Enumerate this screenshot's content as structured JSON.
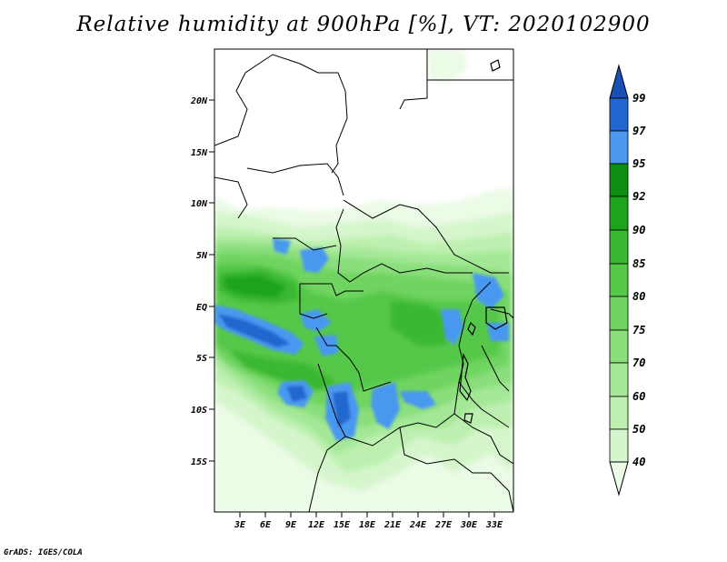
{
  "title": "Relative humidity at 900hPa [%], VT: 2020102900",
  "credit": "GrADS: IGES/COLA",
  "map": {
    "lat_labels": [
      "20N",
      "15N",
      "10N",
      "5N",
      "EQ",
      "5S",
      "10S",
      "15S"
    ],
    "lon_labels": [
      "3E",
      "6E",
      "9E",
      "12E",
      "15E",
      "18E",
      "21E",
      "24E",
      "27E",
      "30E",
      "33E"
    ]
  },
  "colorbar": {
    "levels": [
      "40",
      "50",
      "60",
      "70",
      "75",
      "80",
      "85",
      "90",
      "92",
      "95",
      "97",
      "99"
    ],
    "colors": {
      "c40": "#ebfbe6",
      "c50": "#d5f6cc",
      "c60": "#bdf0b0",
      "c70": "#a4e897",
      "c75": "#8ade7c",
      "c80": "#6fd461",
      "c85": "#55c849",
      "c90": "#3bb832",
      "c92": "#1ea41c",
      "c95": "#0e8e10",
      "c97": "#4a98f0",
      "c99": "#2266d0",
      "top": "#1850b8"
    }
  }
}
